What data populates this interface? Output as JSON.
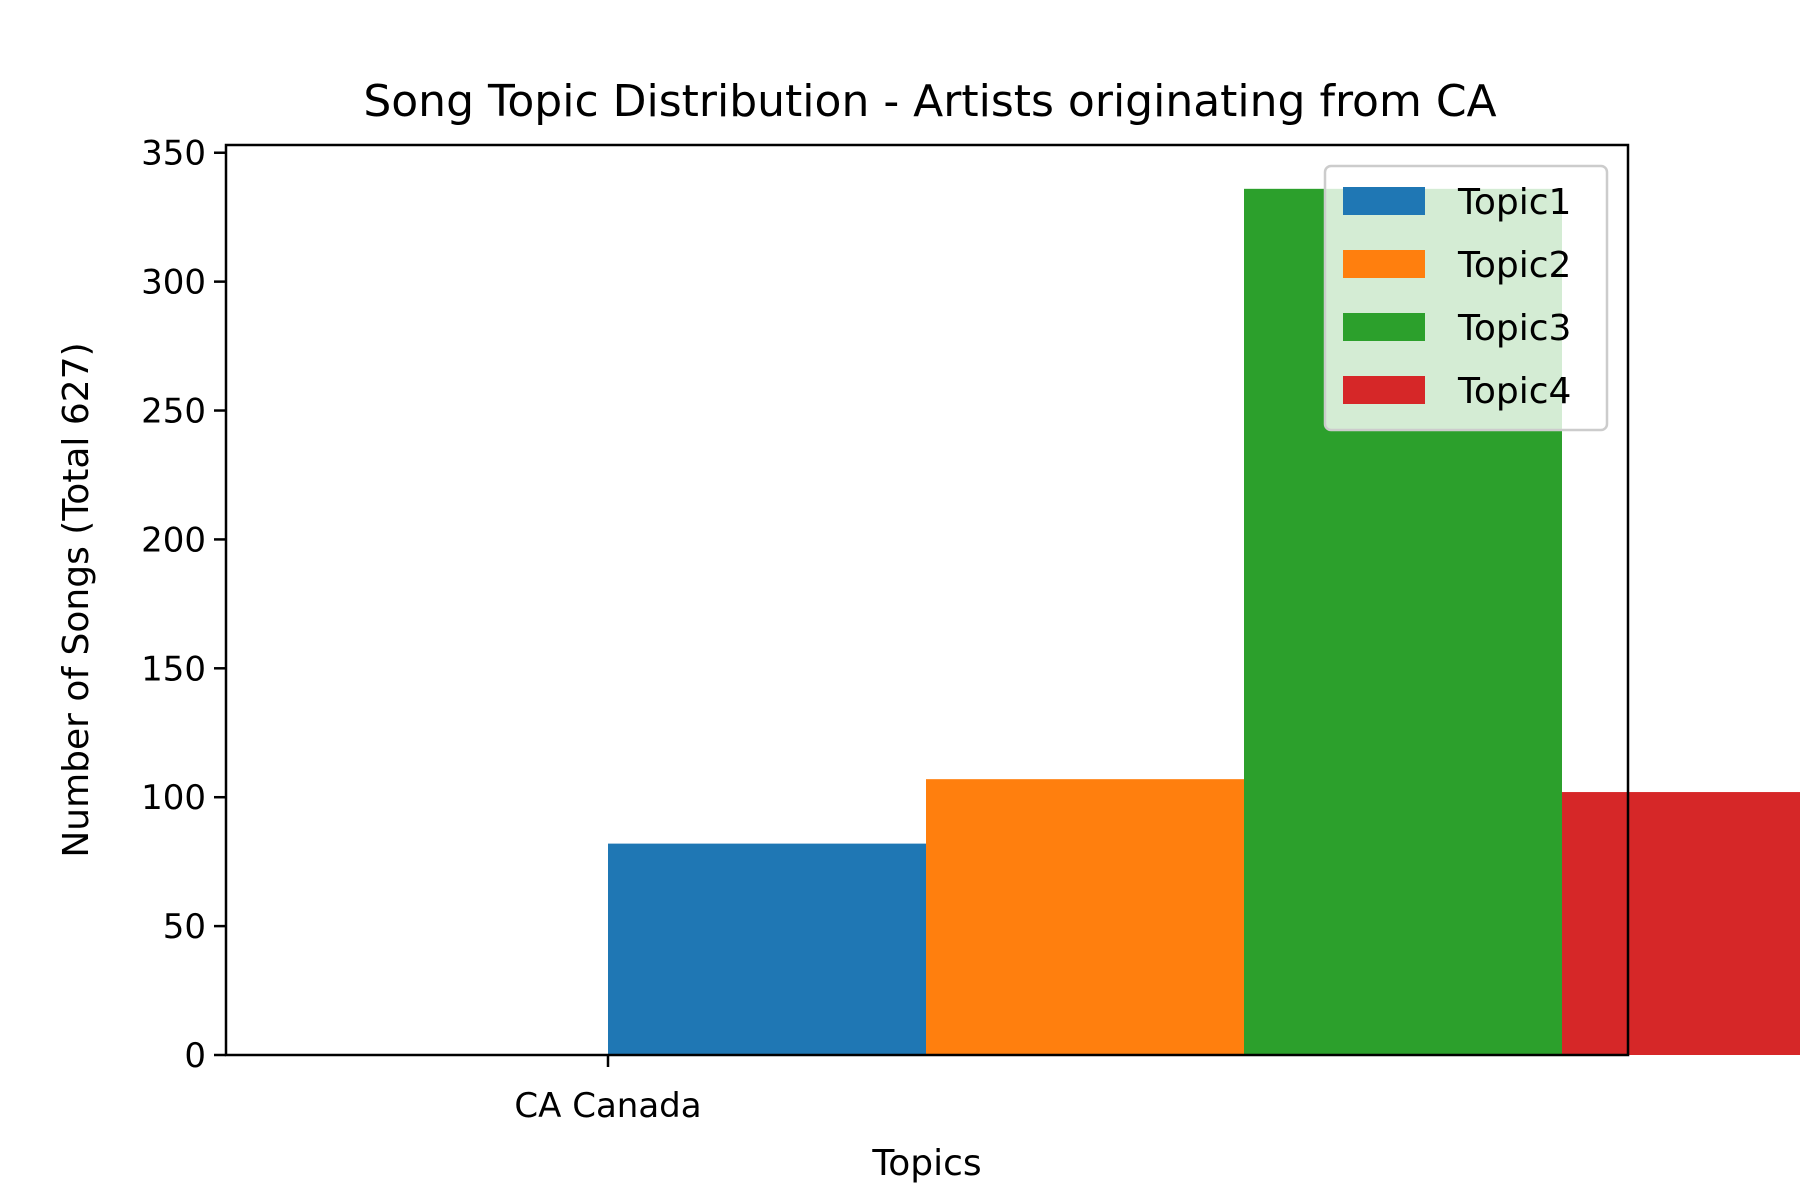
{
  "chart_data": {
    "type": "bar",
    "title": "Song Topic Distribution - Artists originating from CA",
    "xlabel": "Topics",
    "ylabel": "Number of Songs (Total 627)",
    "categories": [
      "CA Canada"
    ],
    "series": [
      {
        "name": "Topic1",
        "values": [
          82
        ],
        "color": "#1f77b4"
      },
      {
        "name": "Topic2",
        "values": [
          107
        ],
        "color": "#ff7f0e"
      },
      {
        "name": "Topic3",
        "values": [
          336
        ],
        "color": "#2ca02c"
      },
      {
        "name": "Topic4",
        "values": [
          102
        ],
        "color": "#d62728"
      }
    ],
    "ylim": [
      0,
      353
    ],
    "yticks": [
      0,
      50,
      100,
      150,
      200,
      250,
      300,
      350
    ],
    "grid": false,
    "legend_position": "top-right"
  }
}
